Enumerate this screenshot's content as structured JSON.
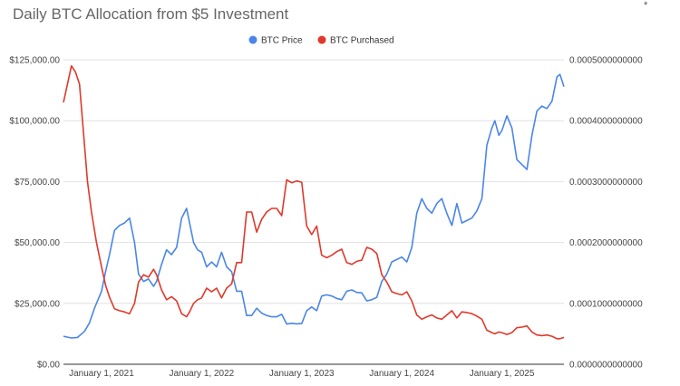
{
  "chart_data": {
    "type": "line",
    "title": "Daily BTC Allocation from $5 Investment",
    "corner_mark": "*",
    "legend_position": "top-center",
    "x_ticks": [
      "January 1, 2021",
      "January 1, 2022",
      "January 1, 2023",
      "January 1, 2024",
      "January 1, 2025"
    ],
    "x_tick_years": [
      2021,
      2022,
      2023,
      2024,
      2025
    ],
    "x_range": [
      2020.62,
      2025.62
    ],
    "y_left": {
      "range": [
        0,
        125000
      ],
      "ticks": [
        0,
        25000,
        50000,
        75000,
        100000,
        125000
      ],
      "tick_labels": [
        "$0.00",
        "$25,000.00",
        "$50,000.00",
        "$75,000.00",
        "$100,000.00",
        "$125,000.00"
      ]
    },
    "y_right": {
      "range": [
        0,
        0.0005
      ],
      "ticks": [
        0,
        0.0001,
        0.0002,
        0.0003,
        0.0004,
        0.0005
      ],
      "tick_labels": [
        "0.0000000000000",
        "0.0001000000000",
        "0.0002000000000",
        "0.0003000000000",
        "0.0004000000000",
        "0.0005000000000"
      ]
    },
    "gridlines": true,
    "series": [
      {
        "name": "BTC Price",
        "axis": "left",
        "color": "#4a86e8",
        "points": [
          [
            2020.62,
            11500
          ],
          [
            2020.7,
            10800
          ],
          [
            2020.76,
            11000
          ],
          [
            2020.83,
            13500
          ],
          [
            2020.88,
            17000
          ],
          [
            2020.93,
            23000
          ],
          [
            2021.0,
            30000
          ],
          [
            2021.04,
            38000
          ],
          [
            2021.08,
            45000
          ],
          [
            2021.13,
            55000
          ],
          [
            2021.18,
            57000
          ],
          [
            2021.23,
            58000
          ],
          [
            2021.28,
            60000
          ],
          [
            2021.33,
            50000
          ],
          [
            2021.37,
            37000
          ],
          [
            2021.42,
            34000
          ],
          [
            2021.47,
            35000
          ],
          [
            2021.52,
            32000
          ],
          [
            2021.55,
            34000
          ],
          [
            2021.6,
            41000
          ],
          [
            2021.65,
            47000
          ],
          [
            2021.7,
            45000
          ],
          [
            2021.75,
            48000
          ],
          [
            2021.8,
            60000
          ],
          [
            2021.85,
            64000
          ],
          [
            2021.88,
            58000
          ],
          [
            2021.92,
            50000
          ],
          [
            2021.96,
            47000
          ],
          [
            2022.0,
            46000
          ],
          [
            2022.05,
            40000
          ],
          [
            2022.1,
            42000
          ],
          [
            2022.15,
            40000
          ],
          [
            2022.2,
            46000
          ],
          [
            2022.25,
            40000
          ],
          [
            2022.3,
            38000
          ],
          [
            2022.35,
            30000
          ],
          [
            2022.4,
            30000
          ],
          [
            2022.45,
            20000
          ],
          [
            2022.5,
            20000
          ],
          [
            2022.55,
            23000
          ],
          [
            2022.6,
            21000
          ],
          [
            2022.65,
            20000
          ],
          [
            2022.7,
            19500
          ],
          [
            2022.75,
            19500
          ],
          [
            2022.8,
            20500
          ],
          [
            2022.85,
            16500
          ],
          [
            2022.9,
            16800
          ],
          [
            2022.95,
            16600
          ],
          [
            2023.0,
            16700
          ],
          [
            2023.05,
            22000
          ],
          [
            2023.1,
            23500
          ],
          [
            2023.15,
            22000
          ],
          [
            2023.2,
            28000
          ],
          [
            2023.25,
            28500
          ],
          [
            2023.3,
            28000
          ],
          [
            2023.35,
            27000
          ],
          [
            2023.4,
            26500
          ],
          [
            2023.45,
            30000
          ],
          [
            2023.5,
            30500
          ],
          [
            2023.55,
            29500
          ],
          [
            2023.6,
            29300
          ],
          [
            2023.65,
            26000
          ],
          [
            2023.7,
            26500
          ],
          [
            2023.75,
            27500
          ],
          [
            2023.8,
            34000
          ],
          [
            2023.85,
            37000
          ],
          [
            2023.9,
            42000
          ],
          [
            2023.95,
            43000
          ],
          [
            2024.0,
            44000
          ],
          [
            2024.05,
            42000
          ],
          [
            2024.1,
            48000
          ],
          [
            2024.15,
            62000
          ],
          [
            2024.2,
            68000
          ],
          [
            2024.25,
            64000
          ],
          [
            2024.3,
            62000
          ],
          [
            2024.35,
            66000
          ],
          [
            2024.4,
            68000
          ],
          [
            2024.45,
            62000
          ],
          [
            2024.5,
            57000
          ],
          [
            2024.55,
            66000
          ],
          [
            2024.6,
            58000
          ],
          [
            2024.65,
            59000
          ],
          [
            2024.7,
            60000
          ],
          [
            2024.75,
            63000
          ],
          [
            2024.8,
            68000
          ],
          [
            2024.85,
            90000
          ],
          [
            2024.9,
            97000
          ],
          [
            2024.93,
            100000
          ],
          [
            2024.97,
            94000
          ],
          [
            2025.0,
            96000
          ],
          [
            2025.05,
            102000
          ],
          [
            2025.1,
            97000
          ],
          [
            2025.15,
            84000
          ],
          [
            2025.2,
            82000
          ],
          [
            2025.25,
            80000
          ],
          [
            2025.3,
            94000
          ],
          [
            2025.35,
            104000
          ],
          [
            2025.4,
            106000
          ],
          [
            2025.45,
            105000
          ],
          [
            2025.5,
            108000
          ],
          [
            2025.55,
            118000
          ],
          [
            2025.58,
            119000
          ],
          [
            2025.62,
            114000
          ]
        ]
      },
      {
        "name": "BTC Purchased",
        "axis": "right",
        "color": "#e0392b",
        "points": [
          [
            2020.62,
            0.00043
          ],
          [
            2020.66,
            0.00046
          ],
          [
            2020.7,
            0.00049
          ],
          [
            2020.74,
            0.00048
          ],
          [
            2020.78,
            0.00046
          ],
          [
            2020.82,
            0.00038
          ],
          [
            2020.86,
            0.0003
          ],
          [
            2020.9,
            0.00025
          ],
          [
            2020.95,
            0.0002
          ],
          [
            2021.0,
            0.00016
          ],
          [
            2021.04,
            0.00013
          ],
          [
            2021.08,
            0.00011
          ],
          [
            2021.13,
            9.1e-05
          ],
          [
            2021.18,
            8.8e-05
          ],
          [
            2021.23,
            8.6e-05
          ],
          [
            2021.28,
            8.3e-05
          ],
          [
            2021.33,
            0.0001
          ],
          [
            2021.37,
            0.000135
          ],
          [
            2021.42,
            0.000147
          ],
          [
            2021.47,
            0.000143
          ],
          [
            2021.52,
            0.000156
          ],
          [
            2021.55,
            0.000147
          ],
          [
            2021.6,
            0.000122
          ],
          [
            2021.65,
            0.000106
          ],
          [
            2021.7,
            0.000111
          ],
          [
            2021.75,
            0.000104
          ],
          [
            2021.8,
            8.3e-05
          ],
          [
            2021.85,
            7.8e-05
          ],
          [
            2021.88,
            8.6e-05
          ],
          [
            2021.92,
            0.0001
          ],
          [
            2021.96,
            0.000106
          ],
          [
            2022.0,
            0.000109
          ],
          [
            2022.05,
            0.000125
          ],
          [
            2022.1,
            0.000119
          ],
          [
            2022.15,
            0.000125
          ],
          [
            2022.2,
            0.000109
          ],
          [
            2022.25,
            0.000125
          ],
          [
            2022.3,
            0.000132
          ],
          [
            2022.35,
            0.000167
          ],
          [
            2022.4,
            0.000167
          ],
          [
            2022.45,
            0.00025
          ],
          [
            2022.5,
            0.00025
          ],
          [
            2022.55,
            0.000217
          ],
          [
            2022.6,
            0.000238
          ],
          [
            2022.65,
            0.00025
          ],
          [
            2022.7,
            0.000256
          ],
          [
            2022.75,
            0.000256
          ],
          [
            2022.8,
            0.000244
          ],
          [
            2022.85,
            0.000303
          ],
          [
            2022.9,
            0.000298
          ],
          [
            2022.95,
            0.000301
          ],
          [
            2023.0,
            0.000299
          ],
          [
            2023.05,
            0.000227
          ],
          [
            2023.1,
            0.000213
          ],
          [
            2023.15,
            0.000227
          ],
          [
            2023.2,
            0.000179
          ],
          [
            2023.25,
            0.000175
          ],
          [
            2023.3,
            0.000179
          ],
          [
            2023.35,
            0.000185
          ],
          [
            2023.4,
            0.000189
          ],
          [
            2023.45,
            0.000167
          ],
          [
            2023.5,
            0.000164
          ],
          [
            2023.55,
            0.000169
          ],
          [
            2023.6,
            0.000171
          ],
          [
            2023.65,
            0.000192
          ],
          [
            2023.7,
            0.000189
          ],
          [
            2023.75,
            0.000182
          ],
          [
            2023.8,
            0.000147
          ],
          [
            2023.85,
            0.000135
          ],
          [
            2023.9,
            0.000119
          ],
          [
            2023.95,
            0.000116
          ],
          [
            2024.0,
            0.000114
          ],
          [
            2024.05,
            0.000119
          ],
          [
            2024.1,
            0.000104
          ],
          [
            2024.15,
            8.1e-05
          ],
          [
            2024.2,
            7.4e-05
          ],
          [
            2024.25,
            7.8e-05
          ],
          [
            2024.3,
            8.1e-05
          ],
          [
            2024.35,
            7.6e-05
          ],
          [
            2024.4,
            7.4e-05
          ],
          [
            2024.45,
            8.1e-05
          ],
          [
            2024.5,
            8.8e-05
          ],
          [
            2024.55,
            7.6e-05
          ],
          [
            2024.6,
            8.6e-05
          ],
          [
            2024.65,
            8.5e-05
          ],
          [
            2024.7,
            8.3e-05
          ],
          [
            2024.75,
            7.9e-05
          ],
          [
            2024.8,
            7.4e-05
          ],
          [
            2024.85,
            5.6e-05
          ],
          [
            2024.9,
            5.2e-05
          ],
          [
            2024.93,
            5e-05
          ],
          [
            2024.97,
            5.3e-05
          ],
          [
            2025.0,
            5.2e-05
          ],
          [
            2025.05,
            4.9e-05
          ],
          [
            2025.1,
            5.2e-05
          ],
          [
            2025.15,
            6e-05
          ],
          [
            2025.2,
            6.1e-05
          ],
          [
            2025.25,
            6.3e-05
          ],
          [
            2025.3,
            5.3e-05
          ],
          [
            2025.35,
            4.8e-05
          ],
          [
            2025.4,
            4.7e-05
          ],
          [
            2025.45,
            4.8e-05
          ],
          [
            2025.5,
            4.6e-05
          ],
          [
            2025.55,
            4.2e-05
          ],
          [
            2025.58,
            4.2e-05
          ],
          [
            2025.62,
            4.4e-05
          ]
        ]
      }
    ]
  }
}
